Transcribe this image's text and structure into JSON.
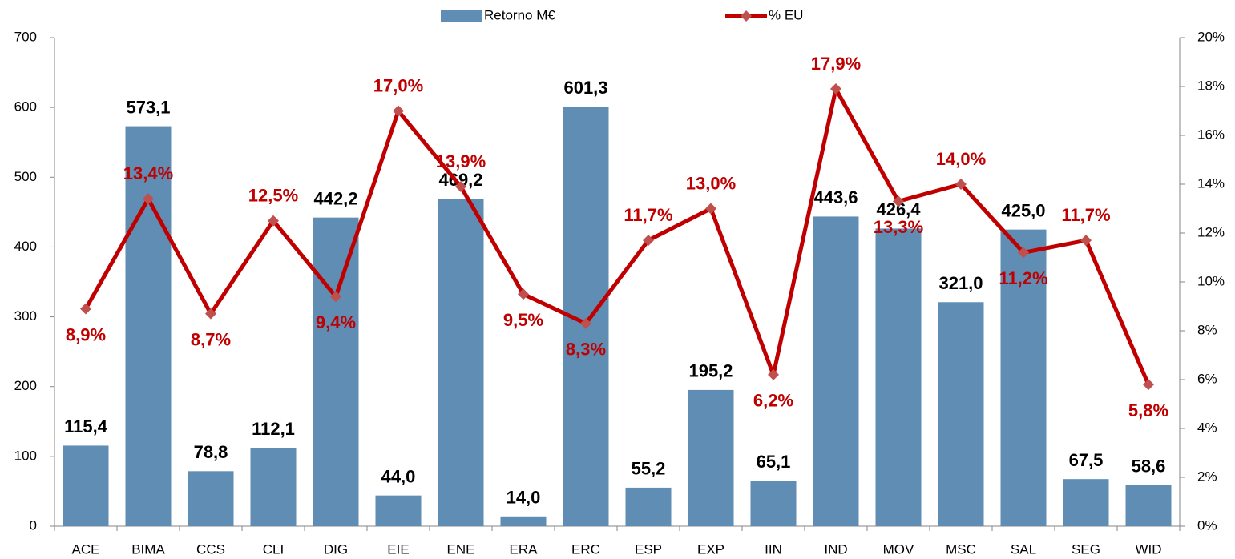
{
  "chart_data": {
    "type": "bar",
    "categories": [
      "ACE",
      "BIMA",
      "CCS",
      "CLI",
      "DIG",
      "EIE",
      "ENE",
      "ERA",
      "ERC",
      "ESP",
      "EXP",
      "IIN",
      "IND",
      "MOV",
      "MSC",
      "SAL",
      "SEG",
      "WID"
    ],
    "series": [
      {
        "name": "Retorno M€",
        "type": "bar",
        "color": "#5f8db3",
        "values": [
          115.4,
          573.1,
          78.8,
          112.1,
          442.2,
          44.0,
          469.2,
          14.0,
          601.3,
          55.2,
          195.2,
          65.1,
          443.6,
          426.4,
          321.0,
          425.0,
          67.5,
          58.6
        ],
        "value_labels": [
          "115,4",
          "573,1",
          "78,8",
          "112,1",
          "442,2",
          "44,0",
          "469,2",
          "14,0",
          "601,3",
          "55,2",
          "195,2",
          "65,1",
          "443,6",
          "426,4",
          "321,0",
          "425,0",
          "67,5",
          "58,6"
        ]
      },
      {
        "name": "% EU",
        "type": "line",
        "axis": "y2",
        "color": "#c00000",
        "marker_color": "#c0504d",
        "values": [
          8.9,
          13.4,
          8.7,
          12.5,
          9.4,
          17.0,
          13.9,
          9.5,
          8.3,
          11.7,
          13.0,
          6.2,
          17.9,
          13.3,
          14.0,
          11.2,
          11.7,
          5.8
        ],
        "value_labels": [
          "8,9%",
          "13,4%",
          "8,7%",
          "12,5%",
          "9,4%",
          "17,0%",
          "13,9%",
          "9,5%",
          "8,3%",
          "11,7%",
          "13,0%",
          "6,2%",
          "17,9%",
          "13,3%",
          "14,0%",
          "11,2%",
          "11,7%",
          "5,8%"
        ]
      }
    ],
    "ylim": [
      0,
      700
    ],
    "yticks": [
      0,
      100,
      200,
      300,
      400,
      500,
      600,
      700
    ],
    "y2lim": [
      0,
      20
    ],
    "y2ticks": [
      {
        "value": 0,
        "label": "0%"
      },
      {
        "value": 2,
        "label": "2%"
      },
      {
        "value": 4,
        "label": "4%"
      },
      {
        "value": 6,
        "label": "6%"
      },
      {
        "value": 8,
        "label": "8%"
      },
      {
        "value": 10,
        "label": "10%"
      },
      {
        "value": 12,
        "label": "12%"
      },
      {
        "value": 14,
        "label": "14%"
      },
      {
        "value": 16,
        "label": "16%"
      },
      {
        "value": 18,
        "label": "18%"
      },
      {
        "value": 20,
        "label": "20%"
      }
    ],
    "legend": "top"
  }
}
